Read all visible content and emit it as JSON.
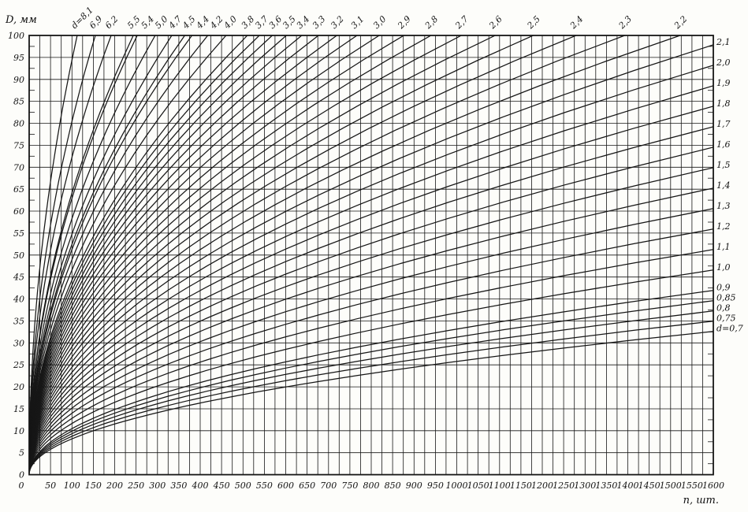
{
  "page": {
    "background": "#fdfdfa",
    "ink_color": "#161616"
  },
  "chart_data": {
    "type": "line",
    "title": "",
    "xlabel": "n, шт.",
    "ylabel": "D, мм",
    "xlim": [
      0,
      1600
    ],
    "ylim": [
      0,
      100
    ],
    "x_label_step": 50,
    "x_grid_step": 25,
    "y_label_step": 5,
    "y_grid_step": 5,
    "y_edge_tick_step": 2.5,
    "grid": true,
    "legend_position": "curve-ends",
    "model": "D = k * d * sqrt(n)",
    "k": 1.165,
    "series_param_name": "d",
    "d_values": [
      8.1,
      6.9,
      6.2,
      5.5,
      5.4,
      5.0,
      4.7,
      4.5,
      4.4,
      4.2,
      4.0,
      3.8,
      3.7,
      3.6,
      3.5,
      3.4,
      3.3,
      3.2,
      3.1,
      3.0,
      2.9,
      2.8,
      2.7,
      2.6,
      2.5,
      2.4,
      2.3,
      2.2,
      2.1,
      2.0,
      1.9,
      1.8,
      1.7,
      1.6,
      1.5,
      1.4,
      1.3,
      1.2,
      1.1,
      1.0,
      0.9,
      0.85,
      0.8,
      0.75,
      0.7
    ],
    "top_edge_labels": [
      "d=8,1",
      "6,9",
      "6,2",
      "5,5",
      "5,4",
      "5,0",
      "4,7",
      "4,5",
      "4,4",
      "4,2",
      "4,0",
      "3,8",
      "3,7",
      "3,6",
      "3,5",
      "3,4",
      "3,3",
      "3,2",
      "3,1",
      "3,0",
      "2,9",
      "2,8",
      "2,7",
      "2,6",
      "2,5",
      "2,4",
      "2,3",
      "2,2"
    ],
    "right_edge_labels": [
      "2,1",
      "2,0",
      "1,9",
      "1,8",
      "1,7",
      "1,6",
      "1,5",
      "1,4",
      "1,3",
      "1,2",
      "1,1",
      "1,0",
      "0,9",
      "0,85",
      "0,8",
      "0,75",
      "d=0,7"
    ],
    "x_tick_labels": [
      "0",
      "50",
      "100",
      "150",
      "200",
      "250",
      "300",
      "350",
      "400",
      "450",
      "500",
      "550",
      "600",
      "650",
      "700",
      "750",
      "800",
      "850",
      "900",
      "950",
      "1000",
      "1050",
      "1100",
      "1150",
      "1200",
      "1250",
      "1300",
      "1350",
      "1400",
      "1450",
      "1500",
      "1550",
      "1600"
    ],
    "y_tick_labels": [
      "0",
      "5",
      "10",
      "15",
      "20",
      "25",
      "30",
      "35",
      "40",
      "45",
      "50",
      "55",
      "60",
      "65",
      "70",
      "75",
      "80",
      "85",
      "90",
      "95",
      "100"
    ]
  }
}
